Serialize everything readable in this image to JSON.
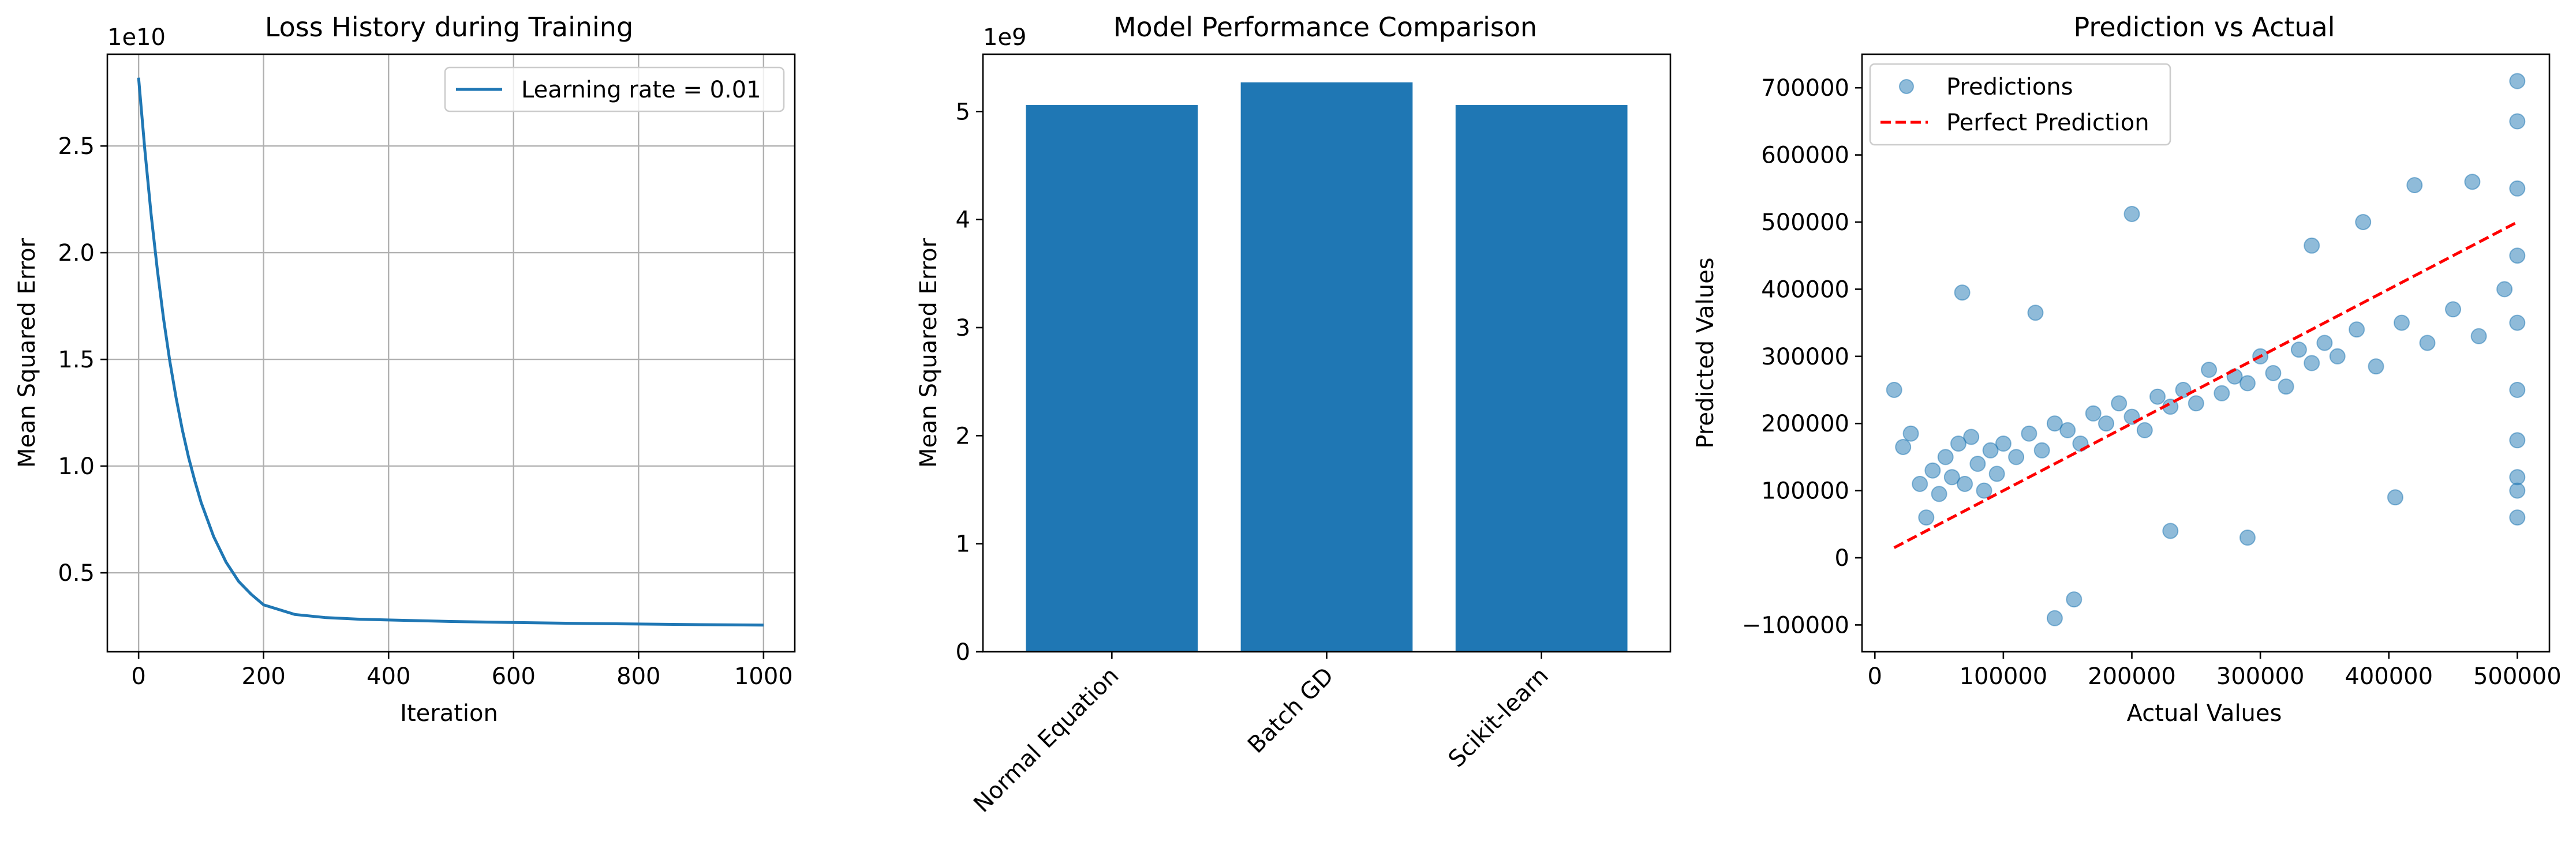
{
  "colors": {
    "series_blue": "#1f77b4",
    "reference_red": "#ff0000",
    "grid_gray": "#b0b0b0",
    "background": "#ffffff"
  },
  "chart_data": [
    {
      "type": "line",
      "title": "Loss History during Training",
      "xlabel": "Iteration",
      "ylabel": "Mean Squared Error",
      "y_offset_label": "1e10",
      "y_scale": 10000000000.0,
      "xlim": [
        -50,
        1050
      ],
      "ylim": [
        1300000000.0,
        29300000000.0
      ],
      "xticks": [
        0,
        200,
        400,
        600,
        800,
        1000
      ],
      "yticks": [
        5000000000.0,
        10000000000.0,
        15000000000.0,
        20000000000.0,
        25000000000.0
      ],
      "ytick_labels": [
        "0.5",
        "1.0",
        "1.5",
        "2.0",
        "2.5"
      ],
      "grid": true,
      "legend_position": "top-right",
      "series": [
        {
          "name": "Learning rate = 0.01",
          "x": [
            0,
            10,
            20,
            30,
            40,
            50,
            60,
            70,
            80,
            90,
            100,
            120,
            140,
            160,
            180,
            200,
            250,
            300,
            350,
            400,
            500,
            600,
            700,
            800,
            900,
            1000
          ],
          "y": [
            28200000000.0,
            24800000000.0,
            21800000000.0,
            19200000000.0,
            16900000000.0,
            14900000000.0,
            13200000000.0,
            11700000000.0,
            10400000000.0,
            9300000000.0,
            8300000000.0,
            6700000000.0,
            5500000000.0,
            4600000000.0,
            4000000000.0,
            3500000000.0,
            3050000000.0,
            2900000000.0,
            2830000000.0,
            2790000000.0,
            2720000000.0,
            2670000000.0,
            2630000000.0,
            2600000000.0,
            2570000000.0,
            2550000000.0
          ]
        }
      ]
    },
    {
      "type": "bar",
      "title": "Model Performance Comparison",
      "xlabel": "",
      "ylabel": "Mean Squared Error",
      "y_offset_label": "1e9",
      "y_scale": 1000000000.0,
      "ylim": [
        0,
        5530000000.0
      ],
      "yticks": [
        0,
        1000000000.0,
        2000000000.0,
        3000000000.0,
        4000000000.0,
        5000000000.0
      ],
      "ytick_labels": [
        "0",
        "1",
        "2",
        "3",
        "4",
        "5"
      ],
      "x_tick_rotation": 45,
      "grid": false,
      "categories": [
        "Normal Equation",
        "Batch GD",
        "Scikit-learn"
      ],
      "values": [
        5060000000.0,
        5270000000.0,
        5060000000.0
      ]
    },
    {
      "type": "scatter",
      "title": "Prediction vs Actual",
      "xlabel": "Actual Values",
      "ylabel": "Predicted Values",
      "xlim": [
        -10000,
        525000
      ],
      "ylim": [
        -140000,
        750000
      ],
      "xticks": [
        0,
        100000,
        200000,
        300000,
        400000,
        500000
      ],
      "xtick_labels": [
        "0",
        "100000",
        "200000",
        "300000",
        "400000",
        "500000"
      ],
      "yticks": [
        -100000,
        0,
        100000,
        200000,
        300000,
        400000,
        500000,
        600000,
        700000
      ],
      "ytick_labels": [
        "−100000",
        "0",
        "100000",
        "200000",
        "300000",
        "400000",
        "500000",
        "600000",
        "700000"
      ],
      "grid": false,
      "legend_position": "top-left",
      "series": [
        {
          "name": "Predictions",
          "x": [
            15000,
            22000,
            28000,
            35000,
            40000,
            45000,
            50000,
            55000,
            60000,
            65000,
            70000,
            75000,
            80000,
            85000,
            90000,
            95000,
            100000,
            110000,
            120000,
            130000,
            140000,
            150000,
            160000,
            170000,
            180000,
            190000,
            200000,
            210000,
            220000,
            230000,
            240000,
            250000,
            260000,
            270000,
            280000,
            290000,
            300000,
            310000,
            320000,
            330000,
            340000,
            350000,
            360000,
            375000,
            390000,
            410000,
            430000,
            450000,
            470000,
            490000,
            500001,
            500001,
            500001,
            500001,
            500001,
            500001,
            500001,
            500001,
            68000,
            125000,
            200000,
            140000,
            155000,
            230000,
            290000,
            340000,
            380000,
            420000,
            465000,
            405000,
            500001,
            500001
          ],
          "y": [
            250000,
            165000,
            185000,
            110000,
            60000,
            130000,
            95000,
            150000,
            120000,
            170000,
            110000,
            180000,
            140000,
            100000,
            160000,
            125000,
            170000,
            150000,
            185000,
            160000,
            200000,
            190000,
            170000,
            215000,
            200000,
            230000,
            210000,
            190000,
            240000,
            225000,
            250000,
            230000,
            280000,
            245000,
            270000,
            260000,
            300000,
            275000,
            255000,
            310000,
            290000,
            320000,
            300000,
            340000,
            285000,
            350000,
            320000,
            370000,
            330000,
            400000,
            710000,
            650000,
            550000,
            450000,
            350000,
            250000,
            175000,
            60000,
            395000,
            365000,
            512000,
            -90000,
            -62000,
            40000,
            30000,
            465000,
            500000,
            555000,
            560000,
            90000,
            120000,
            100000
          ]
        },
        {
          "name": "Perfect Prediction",
          "type": "line",
          "style": "dashed",
          "x": [
            15000,
            500001
          ],
          "y": [
            15000,
            500001
          ]
        }
      ]
    }
  ]
}
